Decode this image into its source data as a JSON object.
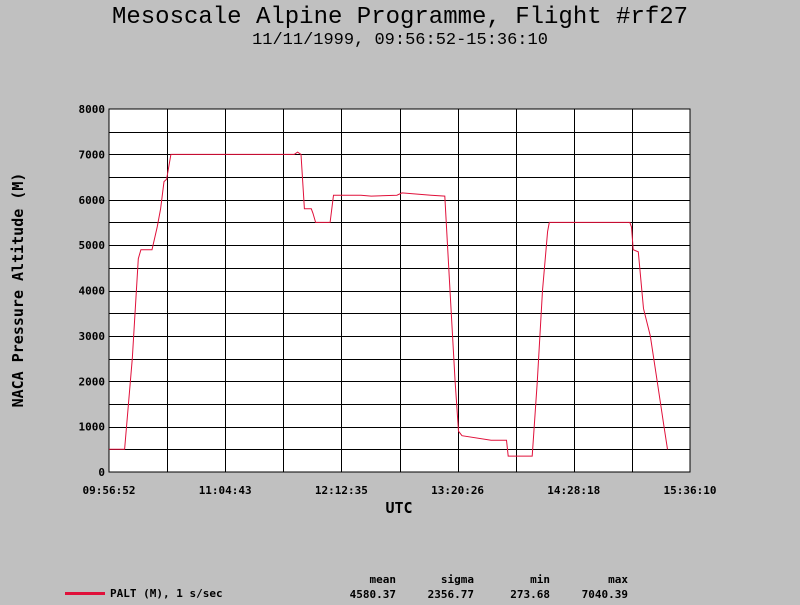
{
  "title": "Mesoscale Alpine Programme, Flight #rf27",
  "subtitle": "11/11/1999, 09:56:52-15:36:10",
  "colors": {
    "background": "#c0c0c0",
    "plot_bg": "#ffffff",
    "series": "#e0103a",
    "grid": "#000000"
  },
  "chart_data": {
    "type": "line",
    "xlabel": "UTC",
    "ylabel": "NACA Pressure Altitude (M)",
    "xlim": [
      "09:56:52",
      "15:36:10"
    ],
    "ylim": [
      0,
      8000
    ],
    "x_ticks": [
      "09:56:52",
      "11:04:43",
      "12:12:35",
      "13:20:26",
      "14:28:18",
      "15:36:10"
    ],
    "y_ticks": [
      "0",
      "1000",
      "2000",
      "3000",
      "4000",
      "5000",
      "6000",
      "7000",
      "8000"
    ],
    "grid": true,
    "series": [
      {
        "name": "PALT (M), 1 s/sec",
        "color": "#e0103a",
        "points": [
          [
            "09:56:52",
            500
          ],
          [
            "10:06:00",
            500
          ],
          [
            "10:10:30",
            2500
          ],
          [
            "10:14:00",
            4700
          ],
          [
            "10:15:30",
            4900
          ],
          [
            "10:22:00",
            4900
          ],
          [
            "10:25:00",
            5400
          ],
          [
            "10:27:00",
            5800
          ],
          [
            "10:29:00",
            6400
          ],
          [
            "10:30:30",
            6450
          ],
          [
            "10:33:00",
            7000
          ],
          [
            "11:45:00",
            7000
          ],
          [
            "11:47:00",
            7050
          ],
          [
            "11:49:00",
            7000
          ],
          [
            "11:51:00",
            5800
          ],
          [
            "11:55:00",
            5800
          ],
          [
            "11:56:00",
            5700
          ],
          [
            "11:57:30",
            5500
          ],
          [
            "12:06:00",
            5500
          ],
          [
            "12:08:00",
            6100
          ],
          [
            "12:24:00",
            6100
          ],
          [
            "12:30:00",
            6080
          ],
          [
            "12:45:00",
            6100
          ],
          [
            "12:48:00",
            6150
          ],
          [
            "13:05:00",
            6100
          ],
          [
            "13:13:00",
            6080
          ],
          [
            "13:16:00",
            4000
          ],
          [
            "13:19:00",
            2000
          ],
          [
            "13:21:00",
            900
          ],
          [
            "13:23:00",
            800
          ],
          [
            "13:40:00",
            700
          ],
          [
            "13:49:00",
            700
          ],
          [
            "13:50:00",
            350
          ],
          [
            "14:04:00",
            350
          ],
          [
            "14:07:00",
            2000
          ],
          [
            "14:10:00",
            4000
          ],
          [
            "14:13:00",
            5300
          ],
          [
            "14:14:00",
            5500
          ],
          [
            "14:30:00",
            5500
          ],
          [
            "14:41:00",
            5500
          ],
          [
            "15:01:00",
            5500
          ],
          [
            "15:02:00",
            5400
          ],
          [
            "15:03:00",
            4900
          ],
          [
            "15:06:00",
            4850
          ],
          [
            "15:09:00",
            3600
          ],
          [
            "15:13:00",
            3000
          ],
          [
            "15:17:00",
            2000
          ],
          [
            "15:21:00",
            1000
          ],
          [
            "15:23:00",
            500
          ]
        ]
      }
    ]
  },
  "stats": {
    "headers": [
      "mean",
      "sigma",
      "min",
      "max"
    ],
    "values": [
      "4580.37",
      "2356.77",
      "273.68",
      "7040.39"
    ]
  }
}
